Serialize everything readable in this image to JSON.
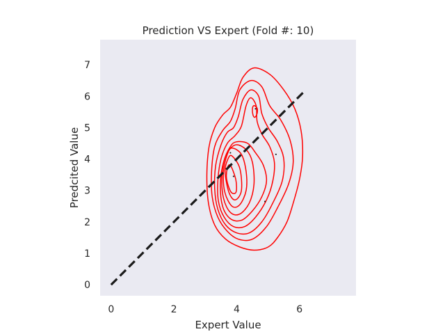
{
  "chart_data": {
    "type": "kde-contour",
    "title": "Prediction VS Expert (Fold #: 10)",
    "xlabel": "Expert Value",
    "ylabel": "Predcited Value",
    "xlim": [
      -0.35,
      7.8
    ],
    "ylim": [
      -0.35,
      7.8
    ],
    "xticks": [
      "0",
      "2",
      "4",
      "6"
    ],
    "yticks": [
      "0",
      "1",
      "2",
      "3",
      "4",
      "5",
      "6",
      "7"
    ],
    "grid": false,
    "background_color": "#eaeaf2",
    "contour_color": "#ff0000",
    "reference_line": {
      "x": [
        0,
        6.15
      ],
      "y": [
        0,
        6.15
      ],
      "style": "dashed",
      "color": "#1a1a1a"
    },
    "contour_levels": [
      {
        "level": 1,
        "x": [
          4.55,
          5.05,
          5.5,
          5.85,
          6.05,
          6.1,
          6.0,
          5.8,
          5.6,
          5.3,
          5.0,
          4.55,
          4.1,
          3.65,
          3.3,
          3.1,
          3.05,
          3.12,
          3.3,
          3.55,
          3.8,
          4.0,
          4.2,
          4.55
        ],
        "y": [
          6.9,
          6.7,
          6.2,
          5.6,
          4.9,
          4.1,
          3.35,
          2.6,
          2.0,
          1.5,
          1.2,
          1.1,
          1.2,
          1.45,
          1.9,
          2.6,
          3.5,
          4.4,
          5.0,
          5.4,
          5.65,
          6.1,
          6.6,
          6.9
        ]
      },
      {
        "level": 2,
        "x": [
          4.45,
          4.8,
          5.05,
          5.4,
          5.7,
          5.8,
          5.65,
          5.3,
          4.95,
          4.5,
          4.05,
          3.7,
          3.4,
          3.22,
          3.2,
          3.3,
          3.55,
          3.8,
          3.95,
          4.1,
          4.45
        ],
        "y": [
          6.5,
          6.3,
          5.7,
          5.25,
          4.6,
          3.9,
          3.2,
          2.45,
          1.85,
          1.45,
          1.45,
          1.7,
          2.15,
          2.8,
          3.6,
          4.4,
          4.9,
          5.2,
          5.6,
          6.2,
          6.5
        ]
      },
      {
        "level": 3,
        "x": [
          4.45,
          4.7,
          4.8,
          5.0,
          5.3,
          5.5,
          5.45,
          5.15,
          4.8,
          4.4,
          4.0,
          3.65,
          3.4,
          3.3,
          3.33,
          3.5,
          3.7,
          3.9,
          4.05,
          4.2,
          4.45
        ],
        "y": [
          6.2,
          6.0,
          5.45,
          5.0,
          4.55,
          4.0,
          3.3,
          2.6,
          2.0,
          1.65,
          1.65,
          1.9,
          2.4,
          3.05,
          3.8,
          4.45,
          4.85,
          5.0,
          5.35,
          5.9,
          6.2
        ]
      },
      {
        "level": 4,
        "x": [
          4.45,
          4.62,
          4.65,
          4.8,
          5.05,
          5.2,
          5.15,
          4.95,
          4.6,
          4.25,
          3.9,
          3.6,
          3.42,
          3.4,
          3.5,
          3.7,
          3.95,
          4.15,
          4.3,
          4.45
        ],
        "y": [
          5.95,
          5.7,
          5.2,
          4.8,
          4.4,
          3.9,
          3.3,
          2.7,
          2.15,
          1.85,
          1.85,
          2.15,
          2.65,
          3.3,
          4.0,
          4.5,
          4.75,
          5.05,
          5.7,
          5.95
        ]
      },
      {
        "level": 5,
        "x": [
          4.0,
          4.35,
          4.6,
          4.85,
          4.95,
          4.8,
          4.5,
          4.15,
          3.8,
          3.55,
          3.48,
          3.58,
          3.8,
          4.0
        ],
        "y": [
          4.55,
          4.5,
          4.2,
          3.8,
          3.3,
          2.8,
          2.35,
          2.05,
          2.1,
          2.5,
          3.2,
          3.9,
          4.4,
          4.55
        ]
      },
      {
        "level": 6,
        "x": [
          3.95,
          4.3,
          4.5,
          4.55,
          4.4,
          4.1,
          3.8,
          3.58,
          3.53,
          3.65,
          3.95
        ],
        "y": [
          4.45,
          4.3,
          3.9,
          3.2,
          2.6,
          2.25,
          2.3,
          2.75,
          3.45,
          4.1,
          4.45
        ]
      },
      {
        "level": 7,
        "x": [
          3.85,
          4.15,
          4.3,
          4.3,
          4.1,
          3.85,
          3.62,
          3.58,
          3.7,
          3.85
        ],
        "y": [
          4.35,
          4.15,
          3.6,
          3.0,
          2.55,
          2.5,
          2.95,
          3.6,
          4.15,
          4.35
        ]
      },
      {
        "level": 8,
        "x": [
          3.85,
          4.1,
          4.15,
          3.95,
          3.75,
          3.63,
          3.72,
          3.85
        ],
        "y": [
          4.1,
          3.7,
          3.0,
          2.7,
          2.95,
          3.6,
          4.0,
          4.1
        ]
      },
      {
        "level": 9,
        "x": [
          3.8,
          3.97,
          3.98,
          3.82,
          3.68,
          3.7,
          3.8
        ],
        "y": [
          3.8,
          3.35,
          2.95,
          2.95,
          3.35,
          3.7,
          3.8
        ]
      },
      {
        "level": 10,
        "x": [
          4.55,
          4.65,
          4.65,
          4.58,
          4.52,
          4.5,
          4.55
        ],
        "y": [
          5.7,
          5.62,
          5.45,
          5.33,
          5.4,
          5.6,
          5.7
        ]
      }
    ],
    "points": [
      {
        "x": 4.6,
        "y": 5.6
      },
      {
        "x": 3.8,
        "y": 4.2
      },
      {
        "x": 5.25,
        "y": 4.15
      },
      {
        "x": 3.9,
        "y": 3.45
      },
      {
        "x": 4.9,
        "y": 2.65
      }
    ]
  }
}
